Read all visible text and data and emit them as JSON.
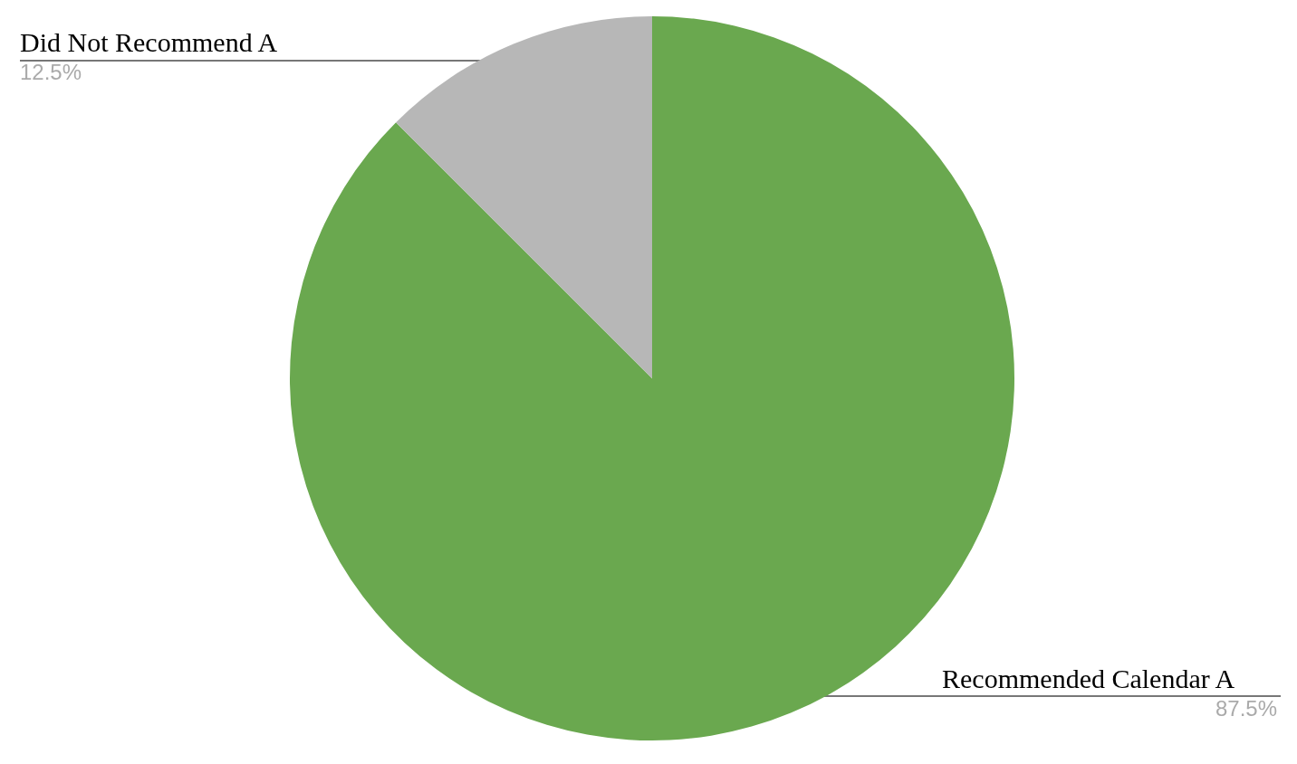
{
  "chart_data": {
    "type": "pie",
    "categories": [
      "Recommended Calendar A",
      "Did Not Recommend A"
    ],
    "values": [
      87.5,
      12.5
    ],
    "value_labels": [
      "87.5%",
      "12.5%"
    ],
    "colors": [
      "#6aa84f",
      "#b7b7b7"
    ]
  }
}
